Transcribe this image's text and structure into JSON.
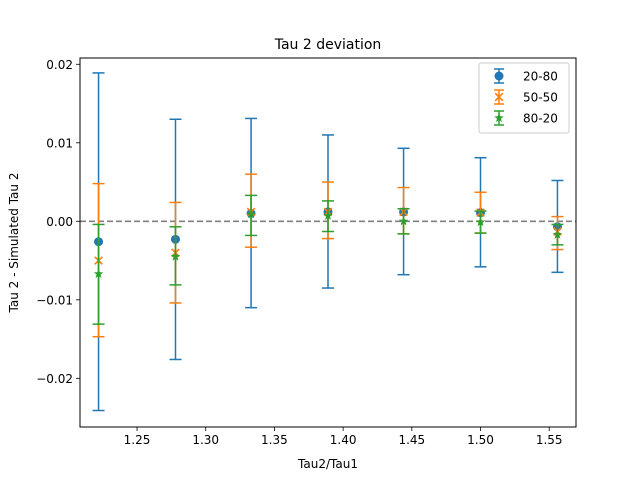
{
  "chart_data": {
    "type": "scatter",
    "title": "Tau 2 deviation",
    "xlabel": "Tau2/Tau1",
    "ylabel": "Tau 2 - Simulated Tau 2",
    "xlim": [
      1.2085,
      1.5695
    ],
    "ylim": [
      -0.0262,
      0.0208
    ],
    "xticks": [
      {
        "value": 1.25,
        "label": "1.25"
      },
      {
        "value": 1.3,
        "label": "1.30"
      },
      {
        "value": 1.35,
        "label": "1.35"
      },
      {
        "value": 1.4,
        "label": "1.40"
      },
      {
        "value": 1.45,
        "label": "1.45"
      },
      {
        "value": 1.5,
        "label": "1.50"
      },
      {
        "value": 1.55,
        "label": "1.55"
      }
    ],
    "yticks": [
      {
        "value": -0.02,
        "label": "−0.02"
      },
      {
        "value": -0.01,
        "label": "−0.01"
      },
      {
        "value": 0.0,
        "label": "0.00"
      },
      {
        "value": 0.01,
        "label": "0.01"
      },
      {
        "value": 0.02,
        "label": "0.02"
      }
    ],
    "reference_line": {
      "y": 0.0,
      "style": "dashed",
      "color": "#808080"
    },
    "legend": {
      "placement": "top-right"
    },
    "grid": false,
    "series": [
      {
        "name": "20-80",
        "color": "#1f77b4",
        "marker": "circle",
        "x": [
          1.222,
          1.278,
          1.333,
          1.389,
          1.444,
          1.5,
          1.556
        ],
        "y": [
          -0.0026,
          -0.0023,
          0.001,
          0.0012,
          0.0012,
          0.0011,
          -0.0007
        ],
        "err_low": [
          -0.0241,
          -0.0176,
          -0.011,
          -0.0085,
          -0.0068,
          -0.0058,
          -0.0065
        ],
        "err_high": [
          0.0189,
          0.013,
          0.0131,
          0.011,
          0.0093,
          0.0081,
          0.0052
        ]
      },
      {
        "name": "50-50",
        "color": "#ff7f0e",
        "marker": "x",
        "x": [
          1.222,
          1.278,
          1.333,
          1.389,
          1.444,
          1.5,
          1.556
        ],
        "y": [
          -0.005,
          -0.004,
          0.0012,
          0.0012,
          0.0012,
          0.0011,
          -0.0013
        ],
        "err_low": [
          -0.0147,
          -0.0104,
          -0.0033,
          -0.0022,
          -0.0016,
          -0.0015,
          -0.0036
        ],
        "err_high": [
          0.0048,
          0.0024,
          0.006,
          0.005,
          0.0043,
          0.0037,
          0.0006
        ]
      },
      {
        "name": "80-20",
        "color": "#2ca02c",
        "marker": "star",
        "x": [
          1.222,
          1.278,
          1.333,
          1.389,
          1.444,
          1.5,
          1.556
        ],
        "y": [
          -0.0067,
          -0.0045,
          0.0009,
          0.0007,
          0.0,
          -0.0001,
          -0.0017
        ],
        "err_low": [
          -0.0131,
          -0.0081,
          -0.0018,
          -0.0013,
          -0.0016,
          -0.0015,
          -0.003
        ],
        "err_high": [
          -0.0004,
          -0.0007,
          0.0033,
          0.0026,
          0.0016,
          0.0013,
          -0.0004
        ]
      }
    ]
  }
}
